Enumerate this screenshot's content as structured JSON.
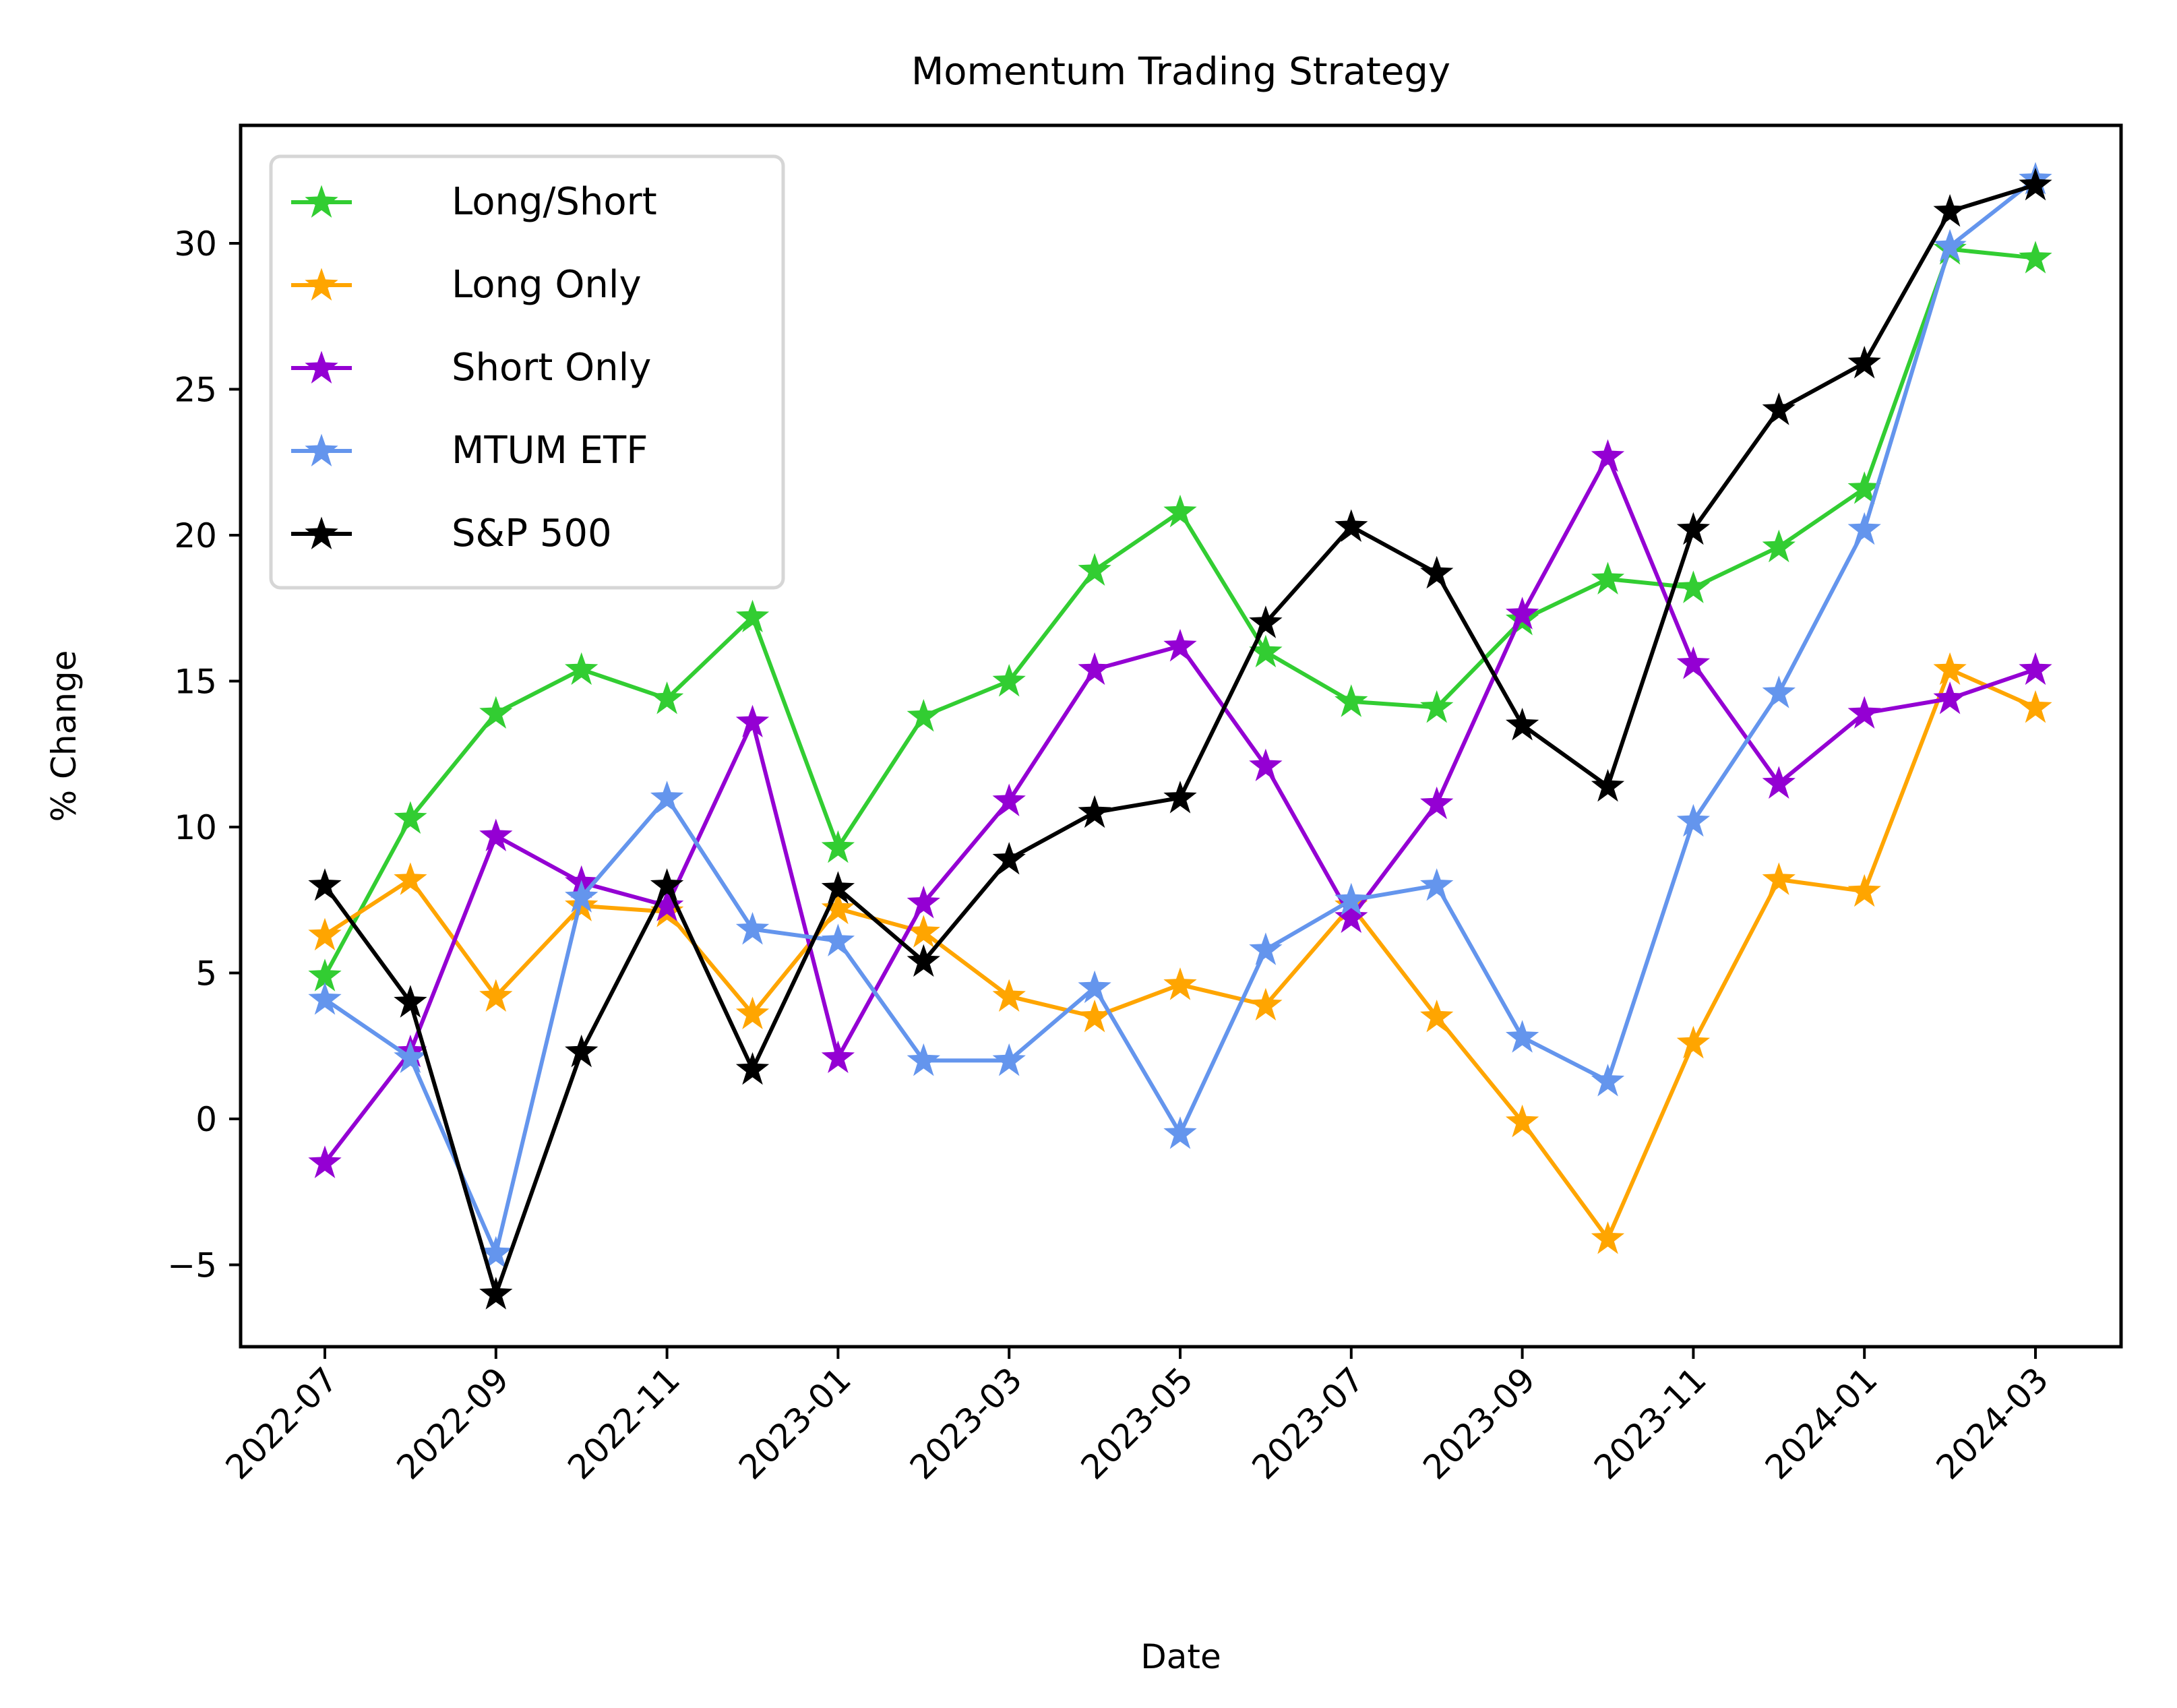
{
  "chart_data": {
    "type": "line",
    "title": "Momentum Trading Strategy",
    "xlabel": "Date",
    "ylabel": "% Change",
    "ylim": [
      -7.8,
      34.2
    ],
    "yticks": [
      -5,
      0,
      5,
      10,
      15,
      20,
      25,
      30
    ],
    "ytick_labels": [
      "−5",
      "0",
      "5",
      "10",
      "15",
      "20",
      "25",
      "30"
    ],
    "xtick_labels": [
      "2022-07",
      "2022-09",
      "2022-11",
      "2023-01",
      "2023-03",
      "2023-05",
      "2023-07",
      "2023-09",
      "2023-11",
      "2024-01",
      "2024-03"
    ],
    "grid": false,
    "legend_position": "upper left",
    "marker": "star",
    "x": [
      "2022-07",
      "2022-08",
      "2022-09",
      "2022-10",
      "2022-11",
      "2022-12",
      "2023-01",
      "2023-02",
      "2023-03",
      "2023-04",
      "2023-05",
      "2023-06",
      "2023-07",
      "2023-08",
      "2023-09",
      "2023-10",
      "2023-11",
      "2023-12",
      "2024-01",
      "2024-02",
      "2024-03"
    ],
    "series": [
      {
        "name": "Long/Short",
        "color": "#32cd32",
        "values": [
          4.9,
          10.3,
          13.9,
          15.4,
          14.4,
          17.2,
          9.3,
          13.8,
          15.0,
          18.8,
          20.8,
          16.0,
          14.3,
          14.1,
          17.1,
          18.5,
          18.2,
          19.6,
          21.6,
          29.8,
          29.5
        ]
      },
      {
        "name": "Long Only",
        "color": "#ffa500",
        "values": [
          6.3,
          8.2,
          4.2,
          7.3,
          7.1,
          3.6,
          7.2,
          6.4,
          4.2,
          3.5,
          4.6,
          3.9,
          7.3,
          3.5,
          -0.1,
          -4.1,
          2.6,
          8.2,
          7.8,
          15.4,
          14.1
        ]
      },
      {
        "name": "Short Only",
        "color": "#9400d3",
        "values": [
          -1.5,
          2.3,
          9.7,
          8.1,
          7.3,
          13.6,
          2.1,
          7.4,
          10.9,
          15.4,
          16.2,
          12.1,
          6.9,
          10.8,
          17.3,
          22.7,
          15.6,
          11.5,
          13.9,
          14.4,
          15.4
        ]
      },
      {
        "name": "MTUM ETF",
        "color": "#6495ed",
        "values": [
          4.1,
          2.1,
          -4.6,
          7.6,
          11.0,
          6.5,
          6.1,
          2.0,
          2.0,
          4.5,
          -0.5,
          5.8,
          7.5,
          8.0,
          2.8,
          1.3,
          10.2,
          14.6,
          20.2,
          29.9,
          32.2
        ]
      },
      {
        "name": "S&P 500",
        "color": "#000000",
        "values": [
          8.0,
          4.0,
          -6.0,
          2.3,
          8.0,
          1.7,
          7.9,
          5.4,
          8.9,
          10.5,
          11.0,
          17.0,
          20.3,
          18.7,
          13.5,
          11.4,
          20.2,
          24.3,
          25.9,
          31.1,
          32.0
        ]
      }
    ]
  }
}
